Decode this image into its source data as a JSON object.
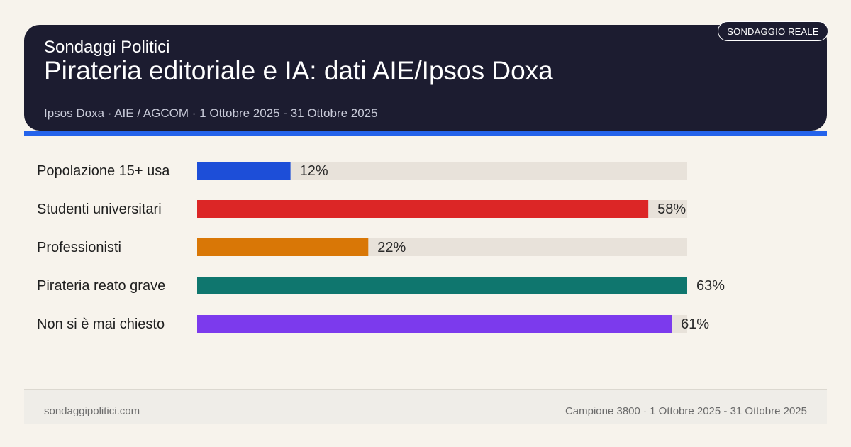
{
  "header": {
    "brand": "Sondaggi Politici",
    "title": "Pirateria editoriale e IA: dati AIE/Ipsos Doxa",
    "subtitle": "Ipsos Doxa · AIE / AGCOM · 1 Ottobre 2025 - 31 Ottobre 2025",
    "badge": "SONDAGGIO REALE"
  },
  "colors": {
    "header_bg": "#1c1c30",
    "accent": "#2563eb",
    "track": "#e8e2da",
    "page_bg": "#f7f3ec"
  },
  "chart_data": {
    "type": "bar",
    "orientation": "horizontal",
    "categories": [
      "Popolazione 15+ usa",
      "Studenti universitari",
      "Professionisti",
      "Pirateria reato grave",
      "Non si è mai chiesto"
    ],
    "values": [
      12,
      58,
      22,
      63,
      61
    ],
    "value_labels": [
      "12%",
      "58%",
      "22%",
      "63%",
      "61%"
    ],
    "bar_colors": [
      "#1d4ed8",
      "#dc2626",
      "#d97706",
      "#0f766e",
      "#7c3aed"
    ],
    "xlim": [
      0,
      63
    ],
    "grid": false,
    "legend": "none"
  },
  "footer": {
    "site": "sondaggipolitici.com",
    "meta": "Campione 3800 · 1 Ottobre 2025 - 31 Ottobre 2025"
  }
}
